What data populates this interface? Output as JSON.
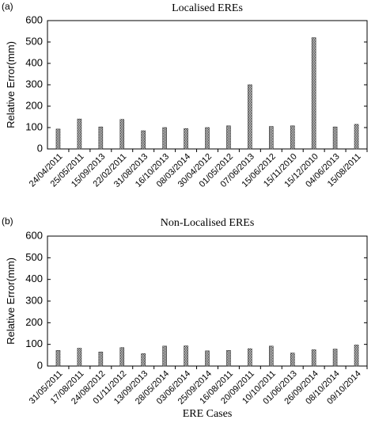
{
  "chart_data": [
    {
      "type": "bar",
      "panel_label": "(a)",
      "title": "Localised EREs",
      "ylabel": "Relative Error(mm)",
      "categories": [
        "24/04/2011",
        "25/05/2011",
        "15/09/2013",
        "22/02/2011",
        "31/08/2013",
        "16/10/2013",
        "08/03/2014",
        "30/04/2012",
        "01/05/2012",
        "07/06/2013",
        "15/06/2012",
        "15/11/2010",
        "15/12/2010",
        "04/06/2013",
        "15/08/2011"
      ],
      "values": [
        93,
        140,
        103,
        138,
        85,
        100,
        95,
        100,
        108,
        300,
        105,
        108,
        520,
        103,
        115
      ],
      "color": "#333333",
      "ylim": [
        0,
        600
      ],
      "yticks": [
        0,
        100,
        200,
        300,
        400,
        500,
        600
      ]
    },
    {
      "type": "bar",
      "panel_label": "(b)",
      "title": "Non-Localised EREs",
      "ylabel": "Relative Error(mm)",
      "xlabel": "ERE Cases",
      "categories": [
        "31/05/2011",
        "17/08/2011",
        "24/08/2012",
        "01/11/2012",
        "13/09/2013",
        "28/05/2014",
        "03/06/2014",
        "25/09/2014",
        "16/08/2011",
        "20/09/2011",
        "10/10/2011",
        "01/06/2013",
        "26/09/2014",
        "08/10/2014",
        "09/10/2014"
      ],
      "values": [
        72,
        82,
        65,
        85,
        57,
        92,
        93,
        70,
        72,
        80,
        92,
        60,
        75,
        78,
        97
      ],
      "color": "#333333",
      "ylim": [
        0,
        600
      ],
      "yticks": [
        0,
        100,
        200,
        300,
        400,
        500,
        600
      ]
    }
  ]
}
